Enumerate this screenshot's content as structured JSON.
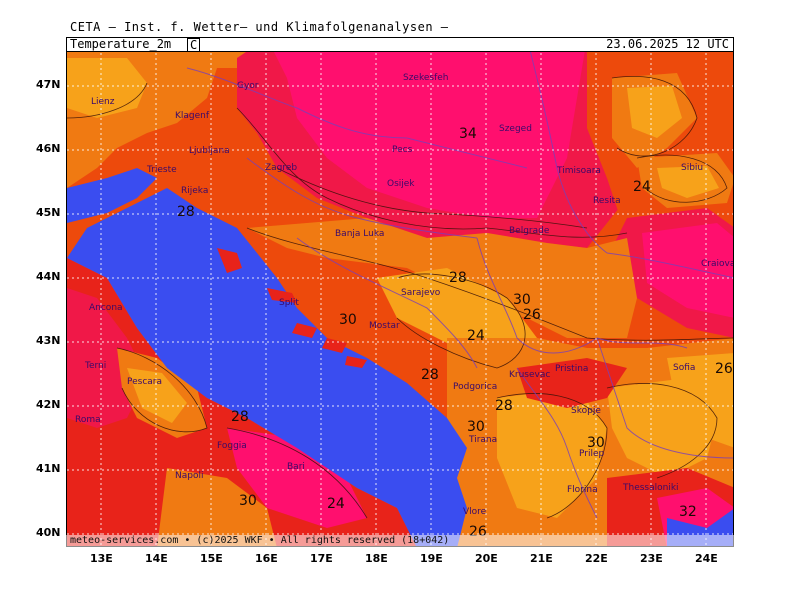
{
  "header": {
    "title": "CETA — Inst. f. Wetter— und Klimafolgenanalysen —"
  },
  "title_bar": {
    "parameter": "Temperature_2m",
    "unit": "C",
    "valid_time": "23.06.2025  12 UTC"
  },
  "footer": {
    "copyright": "meteo-services.com • (c)2025 WKF • All rights reserved (18+042)"
  },
  "axes": {
    "lat_labels": [
      "47N",
      "46N",
      "45N",
      "44N",
      "43N",
      "42N",
      "41N",
      "40N"
    ],
    "lon_labels": [
      "13E",
      "14E",
      "15E",
      "16E",
      "17E",
      "18E",
      "19E",
      "20E",
      "21E",
      "22E",
      "23E",
      "24E"
    ]
  },
  "colors": {
    "sea": "#3a4df0",
    "temp_24_26": "#f7a21a",
    "temp_26_28": "#f07a12",
    "temp_28_30": "#ed4a0c",
    "temp_30_32": "#e8231a",
    "temp_32_34": "#f01848",
    "temp_34_plus": "#ff0f6e",
    "contour": "#3a1208",
    "border": "#7a3fb8",
    "grid": "#ffffff"
  },
  "cities": [
    {
      "name": "Szekesfeh"
    },
    {
      "name": "Gyor"
    },
    {
      "name": "Klagenf"
    },
    {
      "name": "Lienz"
    },
    {
      "name": "Ljubljana"
    },
    {
      "name": "Zagreb"
    },
    {
      "name": "Pecs"
    },
    {
      "name": "Szeged"
    },
    {
      "name": "Trieste"
    },
    {
      "name": "Rijeka"
    },
    {
      "name": "Osijek"
    },
    {
      "name": "Timisoara"
    },
    {
      "name": "Sibiu"
    },
    {
      "name": "Resita"
    },
    {
      "name": "Banja Luka"
    },
    {
      "name": "Belgrade"
    },
    {
      "name": "Craiova"
    },
    {
      "name": "Sarajevo"
    },
    {
      "name": "Split"
    },
    {
      "name": "Mostar"
    },
    {
      "name": "Ancona"
    },
    {
      "name": "Krusevac"
    },
    {
      "name": "Pristina"
    },
    {
      "name": "Sofia"
    },
    {
      "name": "Terni"
    },
    {
      "name": "Pescara"
    },
    {
      "name": "Podgorica"
    },
    {
      "name": "Roma"
    },
    {
      "name": "Skopje"
    },
    {
      "name": "Foggia"
    },
    {
      "name": "Tirana"
    },
    {
      "name": "Prilep"
    },
    {
      "name": "Bari"
    },
    {
      "name": "Napoli"
    },
    {
      "name": "Florina"
    },
    {
      "name": "Thessaloniki"
    },
    {
      "name": "Vlore"
    }
  ],
  "contour_labels": [
    "34",
    "28",
    "24",
    "28",
    "30",
    "26",
    "30",
    "24",
    "28",
    "28",
    "30",
    "28",
    "30",
    "30",
    "26",
    "26",
    "32",
    "24"
  ]
}
